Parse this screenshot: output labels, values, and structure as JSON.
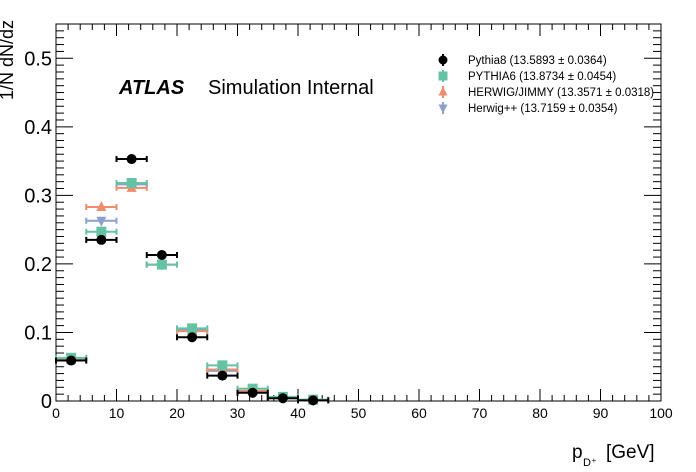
{
  "chart_data": {
    "type": "scatter",
    "title": "",
    "xlabel": "p",
    "xlabel_subscript": "D⁺",
    "xlabel_unit": "[GeV]",
    "ylabel": "1/N dN/dz",
    "xlim": [
      0,
      100
    ],
    "ylim": [
      0,
      0.55
    ],
    "x_tick_labels": [
      "0",
      "10",
      "20",
      "30",
      "40",
      "50",
      "60",
      "70",
      "80",
      "90",
      "100"
    ],
    "y_tick_labels": [
      "0",
      "0.1",
      "0.2",
      "0.3",
      "0.4",
      "0.5"
    ],
    "x_ticks": [
      0,
      10,
      20,
      30,
      40,
      50,
      60,
      70,
      80,
      90,
      100
    ],
    "y_ticks": [
      0,
      0.1,
      0.2,
      0.3,
      0.4,
      0.5
    ],
    "grid": false,
    "legend_position": "top-right",
    "annotations": {
      "atlas": "ATLAS",
      "label": "Simulation Internal"
    },
    "x_bin_halfwidth": 2.5,
    "series": [
      {
        "name": "Pythia8 (13.5893 ± 0.0364)",
        "marker": "circle",
        "color": "#000000",
        "x": [
          2.5,
          7.5,
          12.5,
          17.5,
          22.5,
          27.5,
          32.5,
          37.5,
          42.5
        ],
        "y": [
          0.059,
          0.235,
          0.353,
          0.213,
          0.093,
          0.037,
          0.012,
          0.004,
          0.001
        ]
      },
      {
        "name": "PYTHIA6 (13.8734 ± 0.0454)",
        "marker": "square",
        "color": "#66c2a5",
        "x": [
          2.5,
          7.5,
          12.5,
          17.5,
          22.5,
          27.5,
          32.5,
          37.5,
          42.5
        ],
        "y": [
          0.063,
          0.247,
          0.318,
          0.199,
          0.106,
          0.052,
          0.018,
          0.006,
          0.002
        ]
      },
      {
        "name": "HERWIG/JIMMY (13.3571 ± 0.0318)",
        "marker": "triangle-up",
        "color": "#f08c6c",
        "x": [
          2.5,
          7.5,
          12.5,
          17.5,
          22.5,
          27.5,
          32.5,
          37.5,
          42.5
        ],
        "y": [
          0.06,
          0.283,
          0.311,
          0.199,
          0.102,
          0.046,
          0.015,
          0.005,
          0.001
        ]
      },
      {
        "name": "Herwig++ (13.7159 ± 0.0354)",
        "marker": "triangle-down",
        "color": "#8da0cb",
        "x": [
          2.5,
          7.5,
          12.5,
          17.5,
          22.5,
          27.5,
          32.5,
          37.5,
          42.5
        ],
        "y": [
          0.061,
          0.263,
          0.316,
          0.199,
          0.104,
          0.044,
          0.014,
          0.004,
          0.001
        ]
      }
    ]
  }
}
